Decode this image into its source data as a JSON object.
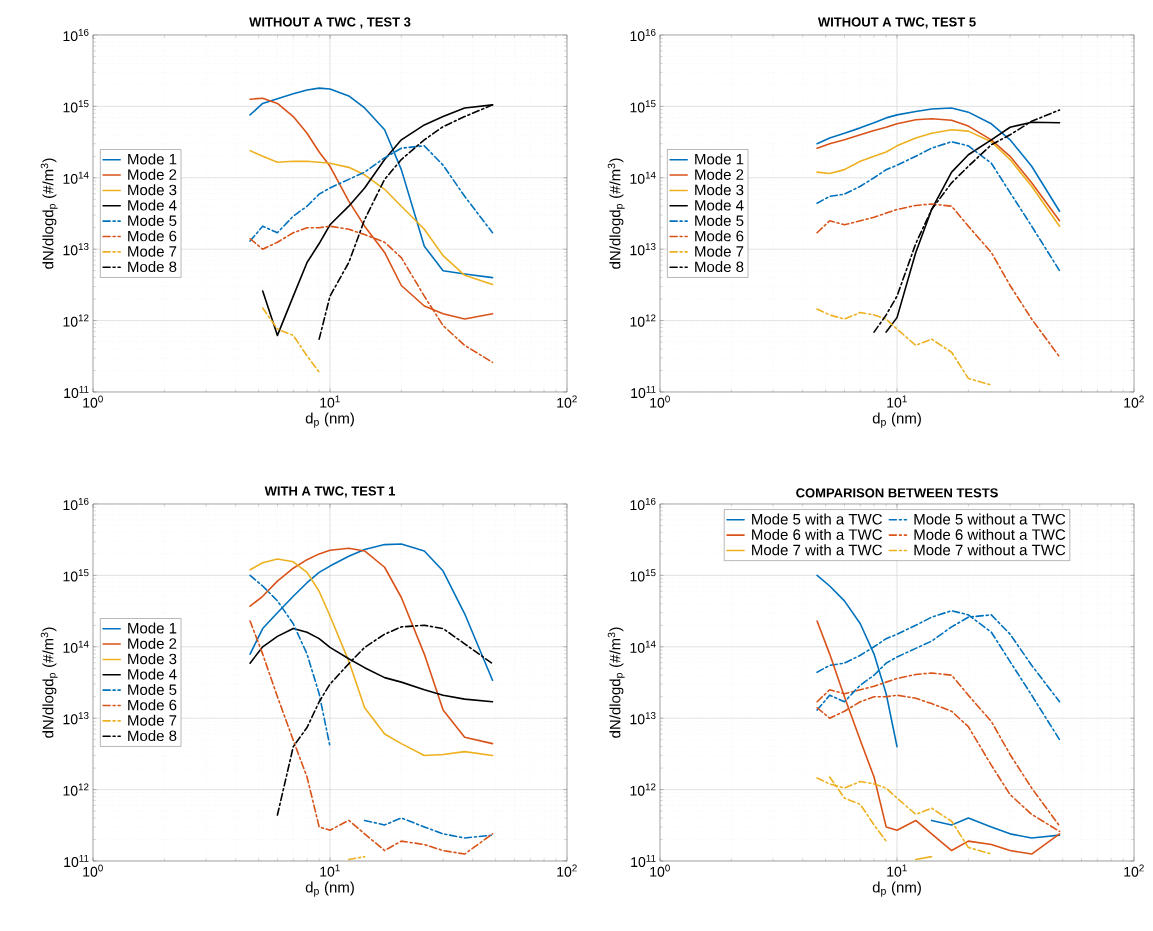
{
  "chart_data": [
    {
      "type": "line",
      "title": "WITHOUT A TWC , TEST 3",
      "xlabel": "d$_{p}$ (nm)",
      "ylabel": "dN/dlogd$_{p}$ (#/m$^{3}$)",
      "log": "xy",
      "grid": true,
      "legend": "left",
      "xlim": [
        1,
        100
      ],
      "ylim": [
        100000000000.0,
        1e+16
      ],
      "xticks": [
        {
          "value": 1,
          "label": "10$^{0}$"
        },
        {
          "value": 10,
          "label": "10$^{1}$"
        },
        {
          "value": 100,
          "label": "10$^{2}$"
        }
      ],
      "yticks": [
        {
          "value": 100000000000.0,
          "label": "10$^{11}$"
        },
        {
          "value": 1000000000000.0,
          "label": "10$^{12}$"
        },
        {
          "value": 10000000000000.0,
          "label": "10$^{13}$"
        },
        {
          "value": 100000000000000.0,
          "label": "10$^{14}$"
        },
        {
          "value": 1000000000000000.0,
          "label": "10$^{15}$"
        },
        {
          "value": 1e+16,
          "label": "10$^{16}$"
        }
      ],
      "x": [
        4.6,
        5.2,
        6,
        7,
        8,
        9,
        10,
        12,
        14,
        17,
        20,
        25,
        30,
        37,
        48.5
      ],
      "series": [
        {
          "name": "Mode 1",
          "color": "#0072bd",
          "line_style": "solid",
          "values": [
            760000000000000.0,
            1100000000000000.0,
            1280000000000000.0,
            1500000000000000.0,
            1700000000000000.0,
            1800000000000000.0,
            1750000000000000.0,
            1400000000000000.0,
            950000000000000.0,
            470000000000000.0,
            130000000000000.0,
            11000000000000.0,
            5000000000000.0,
            4500000000000.0,
            4000000000000.0
          ]
        },
        {
          "name": "Mode 2",
          "color": "#d95319",
          "line_style": "solid",
          "values": [
            1260000000000000.0,
            1300000000000000.0,
            1100000000000000.0,
            720000000000000.0,
            420000000000000.0,
            230000000000000.0,
            145000000000000.0,
            47000000000000.0,
            21000000000000.0,
            9000000000000.0,
            3100000000000.0,
            1600000000000.0,
            1250000000000.0,
            1050000000000.0,
            1250000000000.0
          ]
        },
        {
          "name": "Mode 3",
          "color": "#edb120",
          "line_style": "solid",
          "values": [
            240000000000000.0,
            200000000000000.0,
            165000000000000.0,
            170000000000000.0,
            170000000000000.0,
            165000000000000.0,
            160000000000000.0,
            140000000000000.0,
            110000000000000.0,
            69000000000000.0,
            40000000000000.0,
            19000000000000.0,
            8100000000000.0,
            4300000000000.0,
            3200000000000.0
          ]
        },
        {
          "name": "Mode 4",
          "color": "#000000",
          "line_style": "solid",
          "values": [
            null,
            2600000000000.0,
            620000000000.0,
            2200000000000.0,
            6500000000000.0,
            12000000000000.0,
            22000000000000.0,
            40000000000000.0,
            72000000000000.0,
            180000000000000.0,
            340000000000000.0,
            550000000000000.0,
            720000000000000.0,
            950000000000000.0,
            1050000000000000.0
          ]
        },
        {
          "name": "Mode 5",
          "color": "#0072bd",
          "line_style": "dashed",
          "values": [
            13000000000000.0,
            21000000000000.0,
            17000000000000.0,
            29000000000000.0,
            40000000000000.0,
            59000000000000.0,
            72000000000000.0,
            95000000000000.0,
            120000000000000.0,
            190000000000000.0,
            260000000000000.0,
            280000000000000.0,
            150000000000000.0,
            55000000000000.0,
            17000000000000.0
          ]
        },
        {
          "name": "Mode 6",
          "color": "#d95319",
          "line_style": "dashed",
          "values": [
            14000000000000.0,
            10000000000000.0,
            12500000000000.0,
            17000000000000.0,
            20000000000000.0,
            20000000000000.0,
            21000000000000.0,
            19000000000000.0,
            16000000000000.0,
            12500000000000.0,
            7600000000000.0,
            2200000000000.0,
            850000000000.0,
            450000000000.0,
            260000000000.0
          ]
        },
        {
          "name": "Mode 7",
          "color": "#edb120",
          "line_style": "dashed",
          "values": [
            null,
            1500000000000.0,
            760000000000.0,
            620000000000.0,
            320000000000.0,
            190000000000.0,
            null,
            null,
            null,
            null,
            null,
            null,
            null,
            null,
            null
          ]
        },
        {
          "name": "Mode 8",
          "color": "#000000",
          "line_style": "dashed",
          "values": [
            null,
            null,
            null,
            null,
            null,
            550000000000.0,
            2200000000000.0,
            6500000000000.0,
            26000000000000.0,
            95000000000000.0,
            180000000000000.0,
            340000000000000.0,
            520000000000000.0,
            720000000000000.0,
            1050000000000000.0
          ]
        }
      ]
    },
    {
      "type": "line",
      "title": "WITHOUT A TWC, TEST 5",
      "xlabel": "d$_{p}$ (nm)",
      "ylabel": "dN/dlogd$_{p}$ (#/m$^{3}$)",
      "log": "xy",
      "grid": true,
      "legend": "left",
      "xlim": [
        1,
        100
      ],
      "ylim": [
        100000000000.0,
        1e+16
      ],
      "xticks": [
        {
          "value": 1,
          "label": "10$^{0}$"
        },
        {
          "value": 10,
          "label": "10$^{1}$"
        },
        {
          "value": 100,
          "label": "10$^{2}$"
        }
      ],
      "yticks": [
        {
          "value": 100000000000.0,
          "label": "10$^{11}$"
        },
        {
          "value": 1000000000000.0,
          "label": "10$^{12}$"
        },
        {
          "value": 10000000000000.0,
          "label": "10$^{13}$"
        },
        {
          "value": 100000000000000.0,
          "label": "10$^{14}$"
        },
        {
          "value": 1000000000000000.0,
          "label": "10$^{15}$"
        },
        {
          "value": 1e+16,
          "label": "10$^{16}$"
        }
      ],
      "x": [
        4.6,
        5.2,
        6,
        7,
        8,
        9,
        10,
        12,
        14,
        17,
        20,
        25,
        30,
        37,
        48.5
      ],
      "series": [
        {
          "name": "Mode 1",
          "color": "#0072bd",
          "line_style": "solid",
          "values": [
            300000000000000.0,
            360000000000000.0,
            420000000000000.0,
            500000000000000.0,
            590000000000000.0,
            690000000000000.0,
            760000000000000.0,
            850000000000000.0,
            920000000000000.0,
            950000000000000.0,
            830000000000000.0,
            570000000000000.0,
            340000000000000.0,
            145000000000000.0,
            34000000000000.0
          ]
        },
        {
          "name": "Mode 2",
          "color": "#d95319",
          "line_style": "solid",
          "values": [
            260000000000000.0,
            300000000000000.0,
            340000000000000.0,
            400000000000000.0,
            460000000000000.0,
            510000000000000.0,
            570000000000000.0,
            650000000000000.0,
            670000000000000.0,
            640000000000000.0,
            530000000000000.0,
            340000000000000.0,
            200000000000000.0,
            85000000000000.0,
            25000000000000.0
          ]
        },
        {
          "name": "Mode 3",
          "color": "#edb120",
          "line_style": "solid",
          "values": [
            120000000000000.0,
            115000000000000.0,
            130000000000000.0,
            170000000000000.0,
            200000000000000.0,
            230000000000000.0,
            280000000000000.0,
            360000000000000.0,
            420000000000000.0,
            470000000000000.0,
            450000000000000.0,
            320000000000000.0,
            180000000000000.0,
            76000000000000.0,
            21000000000000.0
          ]
        },
        {
          "name": "Mode 4",
          "color": "#000000",
          "line_style": "solid",
          "values": [
            null,
            null,
            null,
            null,
            null,
            690000000000.0,
            1100000000000.0,
            9000000000000.0,
            36000000000000.0,
            120000000000000.0,
            210000000000000.0,
            340000000000000.0,
            510000000000000.0,
            600000000000000.0,
            590000000000000.0
          ]
        },
        {
          "name": "Mode 5",
          "color": "#0072bd",
          "line_style": "dashed",
          "values": [
            44000000000000.0,
            55000000000000.0,
            59000000000000.0,
            76000000000000.0,
            100000000000000.0,
            130000000000000.0,
            150000000000000.0,
            200000000000000.0,
            260000000000000.0,
            320000000000000.0,
            280000000000000.0,
            160000000000000.0,
            62000000000000.0,
            21000000000000.0,
            5000000000000.0
          ]
        },
        {
          "name": "Mode 6",
          "color": "#d95319",
          "line_style": "dashed",
          "values": [
            17000000000000.0,
            25000000000000.0,
            22000000000000.0,
            25000000000000.0,
            28000000000000.0,
            32000000000000.0,
            36000000000000.0,
            41000000000000.0,
            43000000000000.0,
            40000000000000.0,
            21000000000000.0,
            9000000000000.0,
            3100000000000.0,
            1050000000000.0,
            310000000000.0
          ]
        },
        {
          "name": "Mode 7",
          "color": "#edb120",
          "line_style": "dashed",
          "values": [
            1450000000000.0,
            1200000000000.0,
            1050000000000.0,
            1300000000000.0,
            1200000000000.0,
            1050000000000.0,
            760000000000.0,
            450000000000.0,
            550000000000.0,
            360000000000.0,
            155000000000.0,
            125000000000.0,
            null,
            null,
            null
          ]
        },
        {
          "name": "Mode 8",
          "color": "#000000",
          "line_style": "dashed",
          "values": [
            null,
            null,
            null,
            null,
            690000000000.0,
            1200000000000.0,
            2200000000000.0,
            12000000000000.0,
            36000000000000.0,
            85000000000000.0,
            145000000000000.0,
            290000000000000.0,
            400000000000000.0,
            620000000000000.0,
            890000000000000.0
          ]
        }
      ]
    },
    {
      "type": "line",
      "title": "WITH A TWC, TEST 1",
      "xlabel": "d$_{p}$ (nm)",
      "ylabel": "dN/dlogd$_{p}$ (#/m$^{3}$)",
      "log": "xy",
      "grid": true,
      "legend": "left",
      "xlim": [
        1,
        100
      ],
      "ylim": [
        100000000000.0,
        1e+16
      ],
      "xticks": [
        {
          "value": 1,
          "label": "10$^{0}$"
        },
        {
          "value": 10,
          "label": "10$^{1}$"
        },
        {
          "value": 100,
          "label": "10$^{2}$"
        }
      ],
      "yticks": [
        {
          "value": 100000000000.0,
          "label": "10$^{11}$"
        },
        {
          "value": 1000000000000.0,
          "label": "10$^{12}$"
        },
        {
          "value": 10000000000000.0,
          "label": "10$^{13}$"
        },
        {
          "value": 100000000000000.0,
          "label": "10$^{14}$"
        },
        {
          "value": 1000000000000000.0,
          "label": "10$^{15}$"
        },
        {
          "value": 1e+16,
          "label": "10$^{16}$"
        }
      ],
      "x": [
        4.6,
        5.2,
        6,
        7,
        8,
        9,
        10,
        12,
        14,
        17,
        20,
        25,
        30,
        37,
        48.5
      ],
      "series": [
        {
          "name": "Mode 1",
          "color": "#0072bd",
          "line_style": "solid",
          "values": [
            79000000000000.0,
            180000000000000.0,
            300000000000000.0,
            510000000000000.0,
            790000000000000.0,
            1100000000000000.0,
            1350000000000000.0,
            1850000000000000.0,
            2300000000000000.0,
            2700000000000000.0,
            2750000000000000.0,
            2200000000000000.0,
            1150000000000000.0,
            290000000000000.0,
            34000000000000.0
          ]
        },
        {
          "name": "Mode 2",
          "color": "#d95319",
          "line_style": "solid",
          "values": [
            370000000000000.0,
            510000000000000.0,
            830000000000000.0,
            1260000000000000.0,
            1660000000000000.0,
            2000000000000000.0,
            2250000000000000.0,
            2400000000000000.0,
            2200000000000000.0,
            1300000000000000.0,
            490000000000000.0,
            79000000000000.0,
            13000000000000.0,
            5400000000000.0,
            4400000000000.0
          ]
        },
        {
          "name": "Mode 3",
          "color": "#edb120",
          "line_style": "solid",
          "values": [
            1200000000000000.0,
            1500000000000000.0,
            1700000000000000.0,
            1550000000000000.0,
            1100000000000000.0,
            600000000000000.0,
            270000000000000.0,
            63000000000000.0,
            14000000000000.0,
            6000000000000.0,
            4400000000000.0,
            3000000000000.0,
            3100000000000.0,
            3400000000000.0,
            3000000000000.0
          ]
        },
        {
          "name": "Mode 4",
          "color": "#000000",
          "line_style": "solid",
          "values": [
            59000000000000.0,
            100000000000000.0,
            140000000000000.0,
            180000000000000.0,
            160000000000000.0,
            130000000000000.0,
            98000000000000.0,
            68000000000000.0,
            51000000000000.0,
            37000000000000.0,
            32000000000000.0,
            25000000000000.0,
            21000000000000.0,
            18500000000000.0,
            17000000000000.0
          ]
        },
        {
          "name": "Mode 5",
          "color": "#0072bd",
          "line_style": "dashed",
          "values": [
            1000000000000000.0,
            710000000000000.0,
            440000000000000.0,
            210000000000000.0,
            79000000000000.0,
            22000000000000.0,
            4000000000000.0,
            null,
            370000000000.0,
            320000000000.0,
            400000000000.0,
            300000000000.0,
            240000000000.0,
            210000000000.0,
            230000000000.0
          ]
        },
        {
          "name": "Mode 6",
          "color": "#d95319",
          "line_style": "dashed",
          "values": [
            230000000000000.0,
            79000000000000.0,
            20000000000000.0,
            4900000000000.0,
            1500000000000.0,
            300000000000.0,
            270000000000.0,
            370000000000.0,
            240000000000.0,
            140000000000.0,
            190000000000.0,
            170000000000.0,
            140000000000.0,
            125000000000.0,
            240000000000.0
          ]
        },
        {
          "name": "Mode 7",
          "color": "#edb120",
          "line_style": "dashed",
          "values": [
            null,
            null,
            null,
            null,
            null,
            null,
            null,
            105000000000.0,
            115000000000.0,
            null,
            null,
            null,
            null,
            null,
            null
          ]
        },
        {
          "name": "Mode 8",
          "color": "#000000",
          "line_style": "dashed",
          "values": [
            null,
            null,
            440000000000.0,
            4000000000000.0,
            7400000000000.0,
            17000000000000.0,
            30000000000000.0,
            58000000000000.0,
            98000000000000.0,
            150000000000000.0,
            190000000000000.0,
            200000000000000.0,
            180000000000000.0,
            110000000000000.0,
            58000000000000.0
          ]
        }
      ]
    },
    {
      "type": "line",
      "title": "COMPARISON BETWEEN TESTS",
      "xlabel": "d$_{p}$ (nm)",
      "ylabel": "dN/dlogd$_{p}$ (#/m$^{3}$)",
      "log": "xy",
      "grid": true,
      "legend": "top",
      "xlim": [
        1,
        100
      ],
      "ylim": [
        100000000000.0,
        1e+16
      ],
      "xticks": [
        {
          "value": 1,
          "label": "10$^{0}$"
        },
        {
          "value": 10,
          "label": "10$^{1}$"
        },
        {
          "value": 100,
          "label": "10$^{2}$"
        }
      ],
      "yticks": [
        {
          "value": 100000000000.0,
          "label": "10$^{11}$"
        },
        {
          "value": 1000000000000.0,
          "label": "10$^{12}$"
        },
        {
          "value": 10000000000000.0,
          "label": "10$^{13}$"
        },
        {
          "value": 100000000000000.0,
          "label": "10$^{14}$"
        },
        {
          "value": 1000000000000000.0,
          "label": "10$^{15}$"
        },
        {
          "value": 1e+16,
          "label": "10$^{16}$"
        }
      ],
      "x": [
        4.6,
        5.2,
        6,
        7,
        8,
        9,
        10,
        12,
        14,
        17,
        20,
        25,
        30,
        37,
        48.5
      ],
      "series": [
        {
          "name": "Mode 5 with a TWC",
          "color": "#0072bd",
          "line_style": "solid",
          "values": [
            1000000000000000.0,
            710000000000000.0,
            440000000000000.0,
            210000000000000.0,
            79000000000000.0,
            22000000000000.0,
            4000000000000.0,
            null,
            370000000000.0,
            320000000000.0,
            400000000000.0,
            300000000000.0,
            240000000000.0,
            210000000000.0,
            230000000000.0
          ]
        },
        {
          "name": "Mode 5 without a TWC",
          "color": "#0072bd",
          "line_style": "dashed",
          "values": [
            44000000000000.0,
            55000000000000.0,
            59000000000000.0,
            76000000000000.0,
            100000000000000.0,
            130000000000000.0,
            150000000000000.0,
            200000000000000.0,
            260000000000000.0,
            320000000000000.0,
            280000000000000.0,
            160000000000000.0,
            62000000000000.0,
            21000000000000.0,
            5000000000000.0
          ]
        },
        {
          "name": "Mode 6 with a TWC",
          "color": "#d95319",
          "line_style": "solid",
          "values": [
            230000000000000.0,
            79000000000000.0,
            20000000000000.0,
            4900000000000.0,
            1500000000000.0,
            300000000000.0,
            270000000000.0,
            370000000000.0,
            240000000000.0,
            140000000000.0,
            190000000000.0,
            170000000000.0,
            140000000000.0,
            125000000000.0,
            240000000000.0
          ]
        },
        {
          "name": "Mode 6 without a TWC",
          "color": "#d95319",
          "line_style": "dashed",
          "values": [
            17000000000000.0,
            25000000000000.0,
            22000000000000.0,
            25000000000000.0,
            28000000000000.0,
            32000000000000.0,
            36000000000000.0,
            41000000000000.0,
            43000000000000.0,
            40000000000000.0,
            21000000000000.0,
            9000000000000.0,
            3100000000000.0,
            1050000000000.0,
            310000000000.0
          ]
        },
        {
          "name": "Mode 7 with a TWC",
          "color": "#edb120",
          "line_style": "solid",
          "values": [
            null,
            null,
            null,
            null,
            null,
            null,
            null,
            105000000000.0,
            115000000000.0,
            null,
            null,
            null,
            null,
            null,
            null
          ]
        },
        {
          "name": "Mode 7 without a TWC",
          "color": "#edb120",
          "line_style": "dashed",
          "values": [
            1450000000000.0,
            1200000000000.0,
            1050000000000.0,
            1300000000000.0,
            1200000000000.0,
            1050000000000.0,
            760000000000.0,
            450000000000.0,
            550000000000.0,
            360000000000.0,
            155000000000.0,
            125000000000.0,
            null,
            null,
            null
          ]
        },
        {
          "color": "#0072bd",
          "line_style": "dashed",
          "values": [
            13000000000000.0,
            21000000000000.0,
            17000000000000.0,
            29000000000000.0,
            40000000000000.0,
            59000000000000.0,
            72000000000000.0,
            95000000000000.0,
            120000000000000.0,
            190000000000000.0,
            260000000000000.0,
            280000000000000.0,
            150000000000000.0,
            55000000000000.0,
            17000000000000.0
          ]
        },
        {
          "color": "#d95319",
          "line_style": "dashed",
          "values": [
            14000000000000.0,
            10000000000000.0,
            12500000000000.0,
            17000000000000.0,
            20000000000000.0,
            20000000000000.0,
            21000000000000.0,
            19000000000000.0,
            16000000000000.0,
            12500000000000.0,
            7600000000000.0,
            2200000000000.0,
            850000000000.0,
            450000000000.0,
            260000000000.0
          ]
        },
        {
          "color": "#edb120",
          "line_style": "dashed",
          "values": [
            null,
            1500000000000.0,
            760000000000.0,
            620000000000.0,
            320000000000.0,
            190000000000.0,
            null,
            null,
            null,
            null,
            null,
            null,
            null,
            null,
            null
          ]
        }
      ]
    }
  ]
}
